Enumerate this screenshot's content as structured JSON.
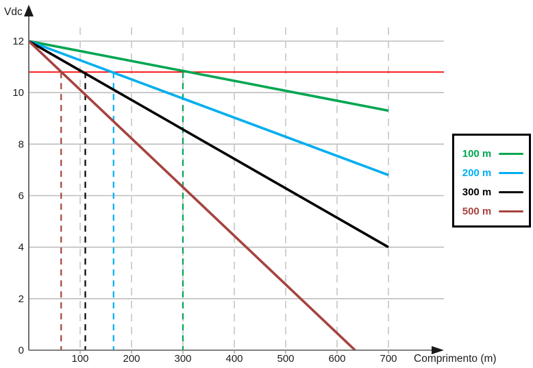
{
  "chart_data": {
    "type": "line",
    "title": "",
    "xlabel": "Comprimento (m)",
    "ylabel": "Vdc",
    "xlim": [
      0,
      808
    ],
    "ylim": [
      0,
      12.8
    ],
    "x_ticks": [
      100,
      200,
      300,
      400,
      500,
      600,
      700
    ],
    "y_ticks": [
      0,
      2,
      4,
      6,
      8,
      10,
      12
    ],
    "grid": {
      "horizontal": "solid",
      "vertical": "dashed"
    },
    "legend_position": "right",
    "series": [
      {
        "name": "100 m",
        "color": "#00A651",
        "points": [
          [
            0,
            12
          ],
          [
            700,
            9.3
          ]
        ]
      },
      {
        "name": "200 m",
        "color": "#00AEEF",
        "points": [
          [
            0,
            12
          ],
          [
            700,
            6.8
          ]
        ]
      },
      {
        "name": "300 m",
        "color": "#000000",
        "points": [
          [
            0,
            12
          ],
          [
            700,
            4.0
          ]
        ]
      },
      {
        "name": "500 m",
        "color": "#A5433F",
        "points": [
          [
            0,
            12
          ],
          [
            635,
            0
          ]
        ]
      }
    ],
    "threshold_line": {
      "y": 10.8,
      "color": "#FE0000"
    },
    "drop_lines": [
      {
        "x": 63,
        "color": "#A5433F",
        "series": "500 m"
      },
      {
        "x": 110,
        "color": "#000000",
        "series": "300 m"
      },
      {
        "x": 165,
        "color": "#00AEEF",
        "series": "200 m"
      },
      {
        "x": 300,
        "color": "#00A651",
        "series": "100 m"
      }
    ]
  },
  "legend": {
    "items": [
      {
        "label": "100 m",
        "color": "#00A651"
      },
      {
        "label": "200 m",
        "color": "#00AEEF"
      },
      {
        "label": "300 m",
        "color": "#000000"
      },
      {
        "label": "500 m",
        "color": "#A5433F"
      }
    ]
  },
  "colors": {
    "grid_horizontal": "#BDBDBD",
    "grid_vertical": "#CCCCCC",
    "axis": "#6E6E6E",
    "arrow": "#1a1a1a",
    "tick_text": "#1c1c1c"
  }
}
